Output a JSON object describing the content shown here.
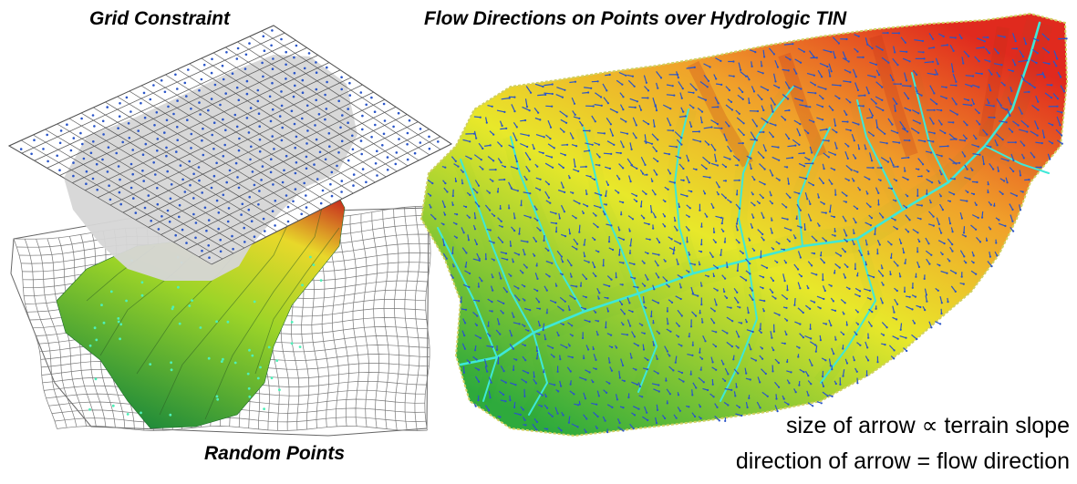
{
  "titles": {
    "grid_constraint": "Grid Constraint",
    "flow_directions": "Flow Directions on Points over Hydrologic TIN",
    "random_points": "Random Points"
  },
  "legend": {
    "size_line": "size of arrow ∝  terrain slope",
    "direction_line": "direction of arrow = flow direction"
  },
  "colors": {
    "terrain_low": "#2eaa3c",
    "terrain_mid": "#e8e82a",
    "terrain_high": "#e02a1e",
    "stream": "#3ee8d8",
    "arrow": "#2a55c8",
    "grid_line": "#555555",
    "grid_fill": "#d6d6d6"
  }
}
